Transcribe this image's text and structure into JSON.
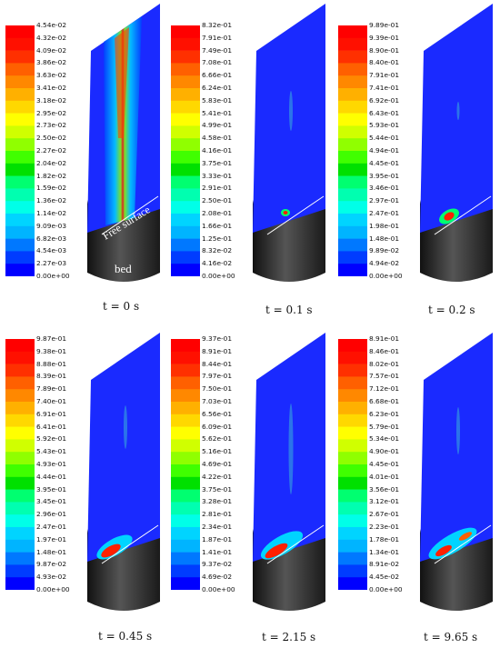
{
  "palette": [
    "#0000ff",
    "#003cff",
    "#0078ff",
    "#00b4ff",
    "#00d4ff",
    "#00ffe8",
    "#00ffb0",
    "#00ff70",
    "#00e000",
    "#40ff00",
    "#90ff00",
    "#d0ff00",
    "#ffff00",
    "#ffd800",
    "#ffb000",
    "#ff8800",
    "#ff6000",
    "#ff3000",
    "#ff1000",
    "#ff0000"
  ],
  "free_surface_label": "Free surface",
  "bed_label": "bed",
  "panels": [
    {
      "time": "t = 0 s",
      "levels": [
        "4.54e-02",
        "4.32e-02",
        "4.09e-02",
        "3.86e-02",
        "3.63e-02",
        "3.41e-02",
        "3.18e-02",
        "2.95e-02",
        "2.73e-02",
        "2.50e-02",
        "2.27e-02",
        "2.04e-02",
        "1.82e-02",
        "1.59e-02",
        "1.36e-02",
        "1.14e-02",
        "9.09e-03",
        "6.82e-03",
        "4.54e-03",
        "2.27e-03",
        "0.00e+00"
      ]
    },
    {
      "time": "t = 0.1 s",
      "levels": [
        "8.32e-01",
        "7.91e-01",
        "7.49e-01",
        "7.08e-01",
        "6.66e-01",
        "6.24e-01",
        "5.83e-01",
        "5.41e-01",
        "4.99e-01",
        "4.58e-01",
        "4.16e-01",
        "3.75e-01",
        "3.33e-01",
        "2.91e-01",
        "2.50e-01",
        "2.08e-01",
        "1.66e-01",
        "1.25e-01",
        "8.32e-02",
        "4.16e-02",
        "0.00e+00"
      ]
    },
    {
      "time": "t = 0.2 s",
      "levels": [
        "9.89e-01",
        "9.39e-01",
        "8.90e-01",
        "8.40e-01",
        "7.91e-01",
        "7.41e-01",
        "6.92e-01",
        "6.43e-01",
        "5.93e-01",
        "5.44e-01",
        "4.94e-01",
        "4.45e-01",
        "3.95e-01",
        "3.46e-01",
        "2.97e-01",
        "2.47e-01",
        "1.98e-01",
        "1.48e-01",
        "9.89e-02",
        "4.94e-02",
        "0.00e+00"
      ]
    },
    {
      "time": "t = 0.45 s",
      "levels": [
        "9.87e-01",
        "9.38e-01",
        "8.88e-01",
        "8.39e-01",
        "7.89e-01",
        "7.40e-01",
        "6.91e-01",
        "6.41e-01",
        "5.92e-01",
        "5.43e-01",
        "4.93e-01",
        "4.44e-01",
        "3.95e-01",
        "3.45e-01",
        "2.96e-01",
        "2.47e-01",
        "1.97e-01",
        "1.48e-01",
        "9.87e-02",
        "4.93e-02",
        "0.00e+00"
      ]
    },
    {
      "time": "t = 2.15 s",
      "levels": [
        "9.37e-01",
        "8.91e-01",
        "8.44e-01",
        "7.97e-01",
        "7.50e-01",
        "7.03e-01",
        "6.56e-01",
        "6.09e-01",
        "5.62e-01",
        "5.16e-01",
        "4.69e-01",
        "4.22e-01",
        "3.75e-01",
        "3.28e-01",
        "2.81e-01",
        "2.34e-01",
        "1.87e-01",
        "1.41e-01",
        "9.37e-02",
        "4.69e-02",
        "0.00e+00"
      ]
    },
    {
      "time": "t = 9.65 s",
      "levels": [
        "8.91e-01",
        "8.46e-01",
        "8.02e-01",
        "7.57e-01",
        "7.12e-01",
        "6.68e-01",
        "6.23e-01",
        "5.79e-01",
        "5.34e-01",
        "4.90e-01",
        "4.45e-01",
        "4.01e-01",
        "3.56e-01",
        "3.12e-01",
        "2.67e-01",
        "2.23e-01",
        "1.78e-01",
        "1.34e-01",
        "8.91e-02",
        "4.45e-02",
        "0.00e+00"
      ]
    }
  ]
}
